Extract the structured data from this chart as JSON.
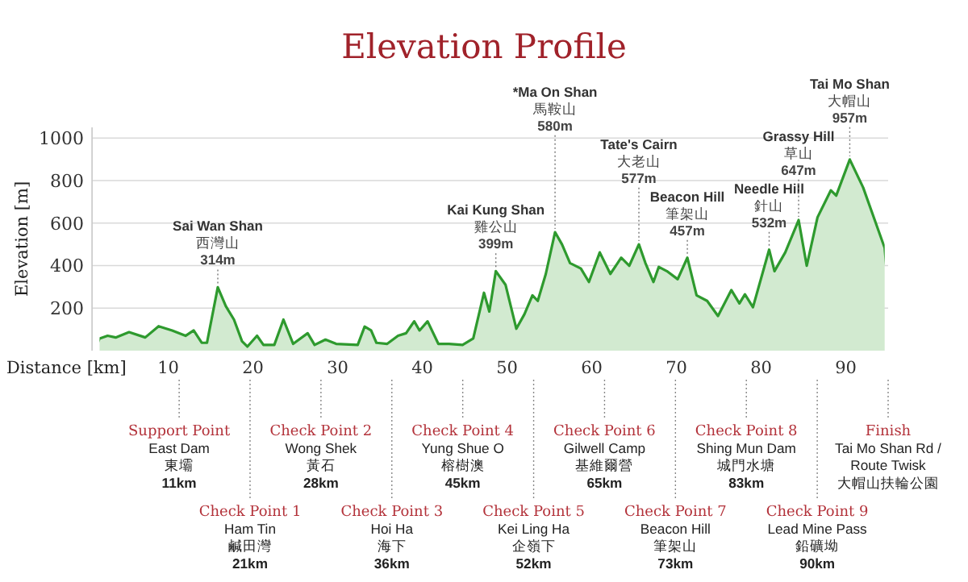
{
  "chart_data": {
    "type": "area",
    "title": "Elevation Profile",
    "xlabel": "Distance [km]",
    "ylabel": "Elevation [m]",
    "x": [
      1.89,
      2.84,
      3.79,
      5.37,
      7.28,
      8.86,
      10.46,
      12.04,
      13.0,
      13.95,
      14.57,
      15.85,
      16.8,
      17.76,
      18.71,
      19.34,
      20.48,
      21.24,
      22.52,
      23.6,
      24.75,
      26.46,
      27.28,
      28.56,
      29.82,
      32.37,
      33.19,
      33.95,
      34.58,
      35.85,
      37.13,
      38.08,
      39.04,
      39.67,
      40.62,
      41.89,
      43.15,
      44.75,
      46.01,
      47.28,
      47.91,
      48.68,
      49.82,
      51.1,
      52.05,
      53.0,
      53.63,
      54.58,
      55.67,
      56.49,
      57.44,
      58.72,
      59.67,
      60.95,
      62.2,
      63.48,
      64.43,
      65.57,
      66.34,
      67.29,
      67.92,
      68.87,
      70.15,
      71.29,
      72.38,
      73.63,
      74.91,
      76.49,
      77.44,
      78.09,
      79.04,
      80.95,
      81.58,
      82.85,
      84.43,
      85.39,
      86.66,
      88.24,
      88.87,
      90.47,
      92.05,
      94.59
    ],
    "series": [
      {
        "color": "#2e9a2e",
        "values": [
          57,
          70,
          62,
          87,
          62,
          115,
          95,
          70,
          95,
          37,
          37,
          298,
          209,
          146,
          44,
          19,
          70,
          27,
          27,
          146,
          32,
          82,
          27,
          52,
          32,
          27,
          113,
          95,
          37,
          32,
          70,
          82,
          138,
          95,
          138,
          32,
          32,
          27,
          57,
          272,
          184,
          374,
          310,
          103,
          171,
          260,
          234,
          361,
          557,
          500,
          412,
          386,
          323,
          462,
          361,
          437,
          399,
          500,
          412,
          323,
          394,
          374,
          336,
          437,
          260,
          234,
          163,
          285,
          222,
          265,
          204,
          475,
          374,
          462,
          614,
          399,
          627,
          754,
          729,
          899,
          767,
          483
        ]
      }
    ],
    "xlim": [
      1,
      95
    ],
    "ylim": [
      0,
      1050
    ],
    "xticks": [
      10,
      20,
      30,
      40,
      50,
      60,
      70,
      80,
      90
    ],
    "yticks": [
      200,
      400,
      600,
      800,
      1000
    ],
    "grid": "y",
    "annotations": [
      {
        "text": "Sai Wan Shan\n西灣山\n**314m**",
        "x": 15.85,
        "y": 298
      },
      {
        "text": "Kai Kung Shan\n雞公山\n**399m**",
        "x": 48.68,
        "y": 374
      },
      {
        "text": "*Ma On Shan\n馬鞍山\n**580m**",
        "x": 55.67,
        "y": 557
      },
      {
        "text": "Tate's Cairn\n大老山\n**577m**",
        "x": 65.57,
        "y": 500
      },
      {
        "text": "Beacon Hill\n筆架山\n**457m**",
        "x": 71.29,
        "y": 437
      },
      {
        "text": "Needle Hill\n針山\n**532m**",
        "x": 80.95,
        "y": 475
      },
      {
        "text": "Grassy Hill\n草山\n**647m**",
        "x": 84.43,
        "y": 614
      },
      {
        "text": "Tai Mo Shan\n大帽山\n**957m**",
        "x": 90.47,
        "y": 899
      },
      "Support Point\nEast Dam\n東壩\n**11km**",
      "Check Point 1\nHam Tin\n鹹田灣\n**21km**",
      "Check Point 2\nWong Shek\n黃石\n**28km**",
      "Check Point 3\nHoi Ha\n海下\n**36km**",
      "Check Point 4\nYung Shue O\n榕樹澳\n**45km**",
      "Check Point 5\nKei Ling Ha\n企嶺下\n**52km**",
      "Check Point 6\nGilwell Camp\n基維爾營\n**65km**",
      "Check Point 7\nBeacon Hill\n筆架山\n**73km**",
      "Check Point 8\nShing Mun Dam\n城門水塘\n**83km**",
      "Check Point 9\nLead Mine Pass\n鉛礦坳\n**90km**",
      "Finish\nTai Mo Shan Rd /\nRoute Twisk\n大帽山扶輪公園"
    ]
  }
}
